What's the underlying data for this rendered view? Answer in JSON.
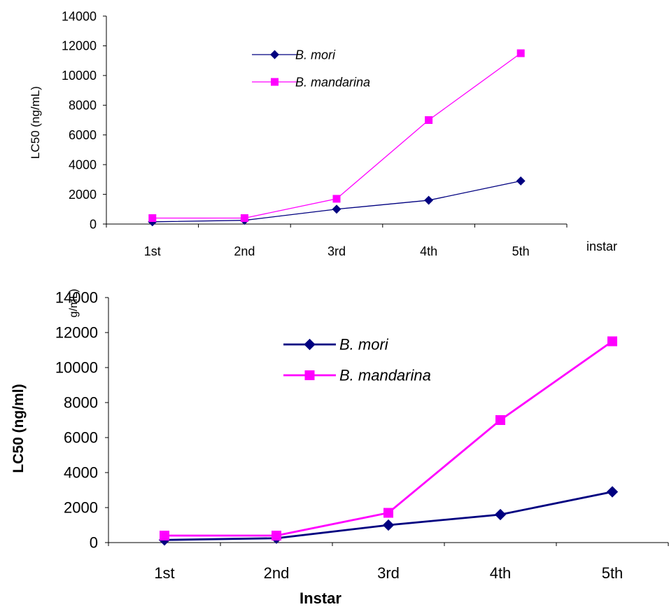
{
  "chart_data": [
    {
      "type": "line",
      "categories": [
        "1st",
        "2nd",
        "3rd",
        "4th",
        "5th"
      ],
      "series": [
        {
          "name": "B. mori",
          "values": [
            150,
            250,
            1000,
            1600,
            2900
          ],
          "color": "#000080",
          "marker": "diamond"
        },
        {
          "name": "B. mandarina",
          "values": [
            400,
            400,
            1700,
            7000,
            11500
          ],
          "color": "#FF00FF",
          "marker": "square"
        }
      ],
      "title": "",
      "xlabel": "instar",
      "ylabel": "LC50 (ng/mL)",
      "ylim": [
        0,
        14000
      ],
      "yticks": [
        "0",
        "2000",
        "4000",
        "6000",
        "8000",
        "10000",
        "12000",
        "14000"
      ],
      "grid": false,
      "legend_position": "top-center"
    },
    {
      "type": "line",
      "categories": [
        "1st",
        "2nd",
        "3rd",
        "4th",
        "5th"
      ],
      "series": [
        {
          "name": "B. mori",
          "values": [
            150,
            250,
            1000,
            1600,
            2900
          ],
          "color": "#000080",
          "marker": "diamond"
        },
        {
          "name": "B. mandarina",
          "values": [
            400,
            400,
            1700,
            7000,
            11500
          ],
          "color": "#FF00FF",
          "marker": "square"
        }
      ],
      "title": "",
      "xlabel": "Instar",
      "ylabel": "LC50 (ng/ml)",
      "ylabel_fragment": "g/mL)",
      "ylim": [
        0,
        14000
      ],
      "yticks": [
        "0",
        "2000",
        "4000",
        "6000",
        "8000",
        "10000",
        "12000",
        "14000"
      ],
      "grid": false,
      "legend_position": "top-center"
    }
  ]
}
